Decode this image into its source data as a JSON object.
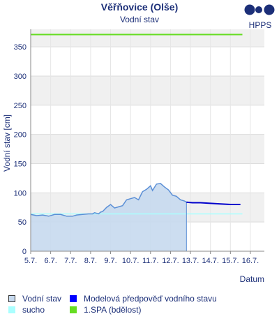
{
  "header": {
    "title": "Věřňovice (Olše)",
    "subtitle": "Vodní stav",
    "logo_text": "HPPS"
  },
  "legend": {
    "items": [
      {
        "label": "Vodní stav",
        "color": "#c6d9ee"
      },
      {
        "label": "Modelová předpověď vodního stavu",
        "color": "#0000cc"
      },
      {
        "label": "sucho",
        "color": "#aaffff"
      },
      {
        "label": "1.SPA (bdělost)",
        "color": "#66dd22"
      }
    ]
  },
  "chart_data": {
    "type": "area",
    "title": "Věřňovice (Olše)",
    "subtitle": "Vodní stav",
    "xlabel": "Datum",
    "ylabel": "Vodní stav [cm]",
    "xlim": [
      5,
      16.7
    ],
    "ylim": [
      0,
      380
    ],
    "x_ticks": [
      "5.7.",
      "6.7.",
      "7.7.",
      "8.7.",
      "9.7.",
      "10.7.",
      "11.7.",
      "12.7.",
      "13.7.",
      "14.7.",
      "15.7.",
      "16.7."
    ],
    "y_ticks": [
      0,
      50,
      100,
      150,
      200,
      250,
      300,
      350
    ],
    "grid": true,
    "series": [
      {
        "name": "Vodní stav",
        "color": "#5b8fd6",
        "fill": "#c6d9ee",
        "x": [
          5.0,
          5.3,
          5.6,
          5.9,
          6.2,
          6.5,
          6.8,
          7.1,
          7.3,
          7.6,
          7.9,
          8.1,
          8.2,
          8.4,
          8.5,
          8.6,
          8.8,
          9.0,
          9.2,
          9.4,
          9.6,
          9.8,
          10.0,
          10.2,
          10.4,
          10.6,
          10.8,
          11.0,
          11.1,
          11.3,
          11.5,
          11.7,
          11.9,
          12.1,
          12.3,
          12.5,
          12.7,
          12.8
        ],
        "values": [
          63,
          61,
          62,
          60,
          63,
          63,
          60,
          60,
          62,
          63,
          64,
          64,
          66,
          64,
          67,
          68,
          75,
          80,
          74,
          76,
          78,
          88,
          90,
          92,
          88,
          102,
          106,
          112,
          104,
          115,
          116,
          110,
          105,
          96,
          94,
          88,
          86,
          84
        ]
      },
      {
        "name": "Modelová předpověď vodního stavu",
        "color": "#0000cc",
        "x": [
          12.8,
          13.1,
          13.5,
          14.0,
          14.5,
          15.0,
          15.3,
          15.5
        ],
        "values": [
          84,
          83,
          83,
          82,
          81,
          80,
          80,
          80
        ]
      },
      {
        "name": "sucho",
        "color": "#aaffff",
        "x": [
          5.0,
          15.6
        ],
        "values": [
          64,
          64
        ]
      },
      {
        "name": "1.SPA (bdělost)",
        "color": "#66dd22",
        "x": [
          5.0,
          15.6
        ],
        "values": [
          371,
          371
        ]
      }
    ]
  }
}
